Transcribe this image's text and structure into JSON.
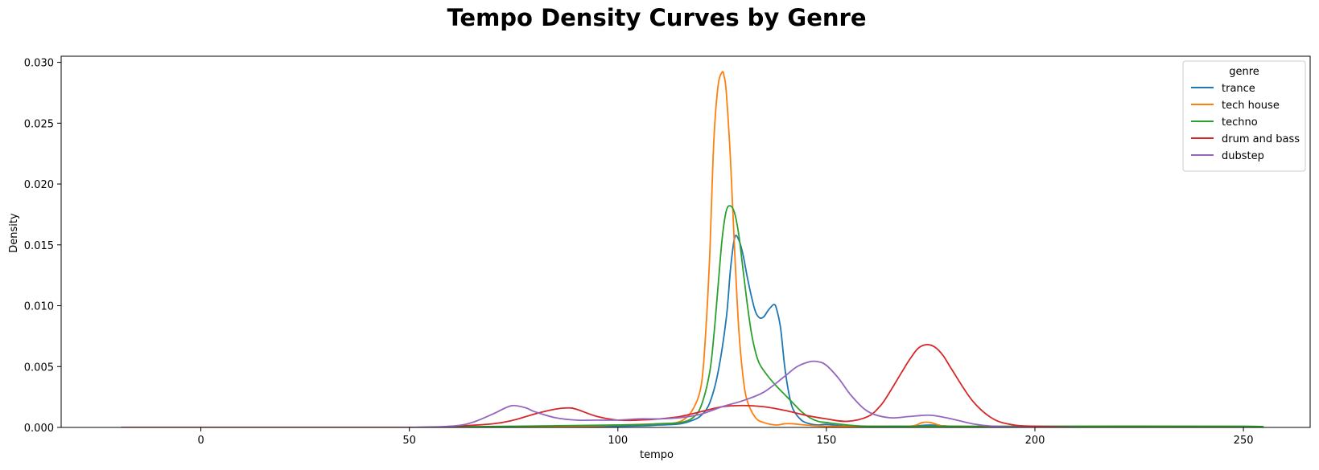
{
  "chart_data": {
    "type": "line",
    "title": "Tempo Density Curves by Genre",
    "xlabel": "tempo",
    "ylabel": "Density",
    "xlim": [
      -33.5,
      266
    ],
    "ylim": [
      0,
      0.0305
    ],
    "xticks": [
      0,
      50,
      100,
      150,
      200,
      250
    ],
    "yticks": [
      0.0,
      0.005,
      0.01,
      0.015,
      0.02,
      0.025,
      0.03
    ],
    "xtick_labels": [
      "0",
      "50",
      "100",
      "150",
      "200",
      "250"
    ],
    "ytick_labels": [
      "0.000",
      "0.005",
      "0.010",
      "0.015",
      "0.020",
      "0.025",
      "0.030"
    ],
    "grid": false,
    "legend": {
      "title": "genre",
      "placement": "top-right"
    },
    "series": [
      {
        "name": "trance",
        "color": "#1f77b4",
        "x": [
          50,
          100,
          110,
          115,
          118,
          120,
          122,
          124,
          126,
          127,
          128,
          129,
          130,
          131,
          132,
          133,
          134,
          135,
          136,
          137,
          137.5,
          138,
          139,
          140,
          141,
          142,
          144,
          146,
          148,
          150,
          155,
          160,
          165,
          170,
          175,
          180,
          200,
          253
        ],
        "y": [
          0,
          0.0001,
          0.0002,
          0.0003,
          0.0006,
          0.001,
          0.002,
          0.0045,
          0.009,
          0.013,
          0.0156,
          0.0154,
          0.0142,
          0.0124,
          0.0108,
          0.0095,
          0.009,
          0.0091,
          0.0096,
          0.01,
          0.0101,
          0.0098,
          0.0082,
          0.005,
          0.0028,
          0.0015,
          0.0006,
          0.0003,
          0.0002,
          0.00025,
          0.0001,
          0.0001,
          0.0001,
          0.0001,
          0.0002,
          0.0001,
          0,
          0
        ]
      },
      {
        "name": "tech house",
        "color": "#ff7f0e",
        "x": [
          50,
          90,
          100,
          110,
          115,
          118,
          120,
          121,
          122,
          123,
          124,
          125,
          125.5,
          126,
          127,
          128,
          129,
          130,
          131,
          133,
          135,
          138,
          140,
          142,
          145,
          150,
          160,
          170,
          173,
          175,
          177,
          180,
          200,
          253
        ],
        "y": [
          0,
          0.0001,
          0.0002,
          0.0003,
          0.0005,
          0.0015,
          0.0035,
          0.0075,
          0.014,
          0.0235,
          0.028,
          0.0292,
          0.0288,
          0.0275,
          0.022,
          0.0145,
          0.008,
          0.0042,
          0.0022,
          0.0008,
          0.0004,
          0.0002,
          0.0003,
          0.0003,
          0.0002,
          0.0001,
          0.0001,
          0.0001,
          0.0004,
          0.0004,
          0.0002,
          0.0001,
          0,
          0
        ]
      },
      {
        "name": "techno",
        "color": "#2ca02c",
        "x": [
          50,
          100,
          110,
          115,
          118,
          120,
          122,
          123,
          124,
          125,
          126,
          127,
          128,
          129,
          130,
          131,
          132,
          133,
          134,
          136,
          138,
          140,
          142,
          144,
          146,
          148,
          150,
          155,
          160,
          170,
          175,
          180,
          200,
          250,
          253
        ],
        "y": [
          0,
          0.0002,
          0.0003,
          0.0004,
          0.0008,
          0.0018,
          0.0045,
          0.0075,
          0.0115,
          0.0155,
          0.0178,
          0.0182,
          0.0176,
          0.0158,
          0.013,
          0.0102,
          0.0078,
          0.0062,
          0.0052,
          0.0042,
          0.0034,
          0.0027,
          0.002,
          0.0013,
          0.0008,
          0.0005,
          0.0004,
          0.0002,
          0.0001,
          0.0001,
          0.0001,
          0.0001,
          0.0001,
          0.0001,
          0
        ]
      },
      {
        "name": "drum and bass",
        "color": "#d62728",
        "x": [
          -19,
          50,
          60,
          70,
          75,
          80,
          85,
          88,
          90,
          95,
          100,
          105,
          110,
          115,
          120,
          125,
          130,
          135,
          140,
          145,
          150,
          155,
          160,
          163,
          165,
          168,
          170,
          172,
          174,
          176,
          178,
          180,
          185,
          190,
          195,
          200,
          210
        ],
        "y": [
          0,
          0,
          0.0001,
          0.0003,
          0.0006,
          0.0011,
          0.0015,
          0.0016,
          0.0015,
          0.0009,
          0.0006,
          0.0006,
          0.0007,
          0.0009,
          0.0013,
          0.0017,
          0.0018,
          0.0017,
          0.0014,
          0.001,
          0.0007,
          0.0005,
          0.0009,
          0.0018,
          0.0028,
          0.0045,
          0.0056,
          0.0065,
          0.0068,
          0.0066,
          0.0059,
          0.0048,
          0.0022,
          0.0007,
          0.0002,
          0.0001,
          0
        ]
      },
      {
        "name": "dubstep",
        "color": "#9467bd",
        "x": [
          50,
          60,
          65,
          70,
          73,
          75,
          78,
          80,
          85,
          90,
          95,
          100,
          105,
          110,
          115,
          120,
          125,
          130,
          135,
          140,
          143,
          146,
          148,
          150,
          153,
          156,
          160,
          165,
          170,
          175,
          180,
          185,
          190,
          200,
          210
        ],
        "y": [
          0,
          0.0001,
          0.0004,
          0.0011,
          0.0016,
          0.0018,
          0.0016,
          0.0013,
          0.0008,
          0.0006,
          0.0006,
          0.0006,
          0.0007,
          0.0007,
          0.0008,
          0.0011,
          0.0017,
          0.0022,
          0.0029,
          0.0042,
          0.005,
          0.0054,
          0.0054,
          0.0051,
          0.004,
          0.0026,
          0.0013,
          0.0008,
          0.0009,
          0.001,
          0.0007,
          0.0003,
          0.0001,
          0,
          0
        ]
      }
    ]
  }
}
